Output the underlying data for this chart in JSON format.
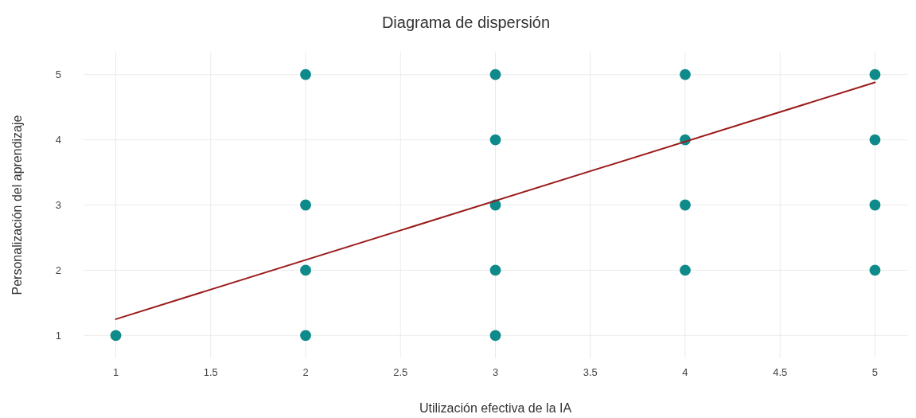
{
  "chart_data": {
    "type": "scatter",
    "title": "Diagrama de dispersión",
    "xlabel": "Utilización efectiva de la IA",
    "ylabel": "Personalización del aprendizaje",
    "xlim": [
      0.83,
      5.17
    ],
    "ylim": [
      0.65,
      5.35
    ],
    "xticks": [
      1,
      1.5,
      2,
      2.5,
      3,
      3.5,
      4,
      4.5,
      5
    ],
    "yticks": [
      1,
      2,
      3,
      4,
      5
    ],
    "grid": true,
    "series": [
      {
        "color": "#0f8a8a",
        "marker": "circle",
        "x": [
          1,
          2,
          2,
          2,
          2,
          3,
          3,
          3,
          3,
          3,
          4,
          4,
          4,
          4,
          5,
          5,
          5,
          5
        ],
        "values": [
          1,
          5,
          3,
          2,
          1,
          5,
          4,
          3,
          2,
          1,
          5,
          4,
          3,
          2,
          5,
          4,
          3,
          2
        ]
      },
      {
        "type": "line",
        "color": "#9b1b1b",
        "line_style": "solid",
        "x": [
          1,
          5
        ],
        "values": [
          1.25,
          4.88
        ]
      }
    ]
  }
}
